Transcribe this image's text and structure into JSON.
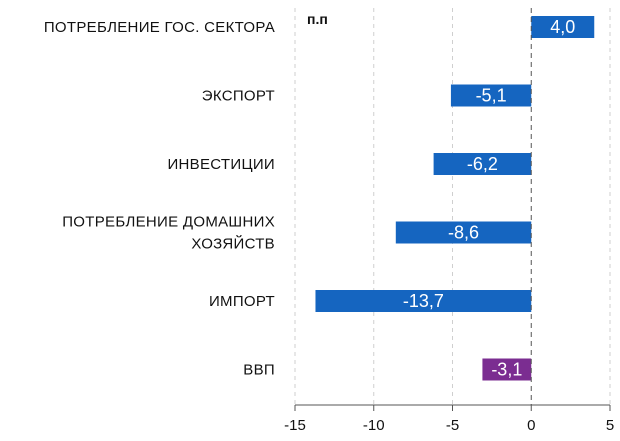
{
  "chart_data": {
    "type": "bar",
    "orientation": "horizontal",
    "unit_label": "п.п",
    "categories": [
      [
        "ПОТРЕБЛЕНИЕ ГОС. СЕКТОРА"
      ],
      [
        "ЭКСПОРТ"
      ],
      [
        "ИНВЕСТИЦИИ"
      ],
      [
        "ПОТРЕБЛЕНИЕ ДОМАШНИХ",
        "ХОЗЯЙСТВ"
      ],
      [
        "ИМПОРТ"
      ],
      [
        "ВВП"
      ]
    ],
    "values": [
      4.0,
      -5.1,
      -6.2,
      -8.6,
      -13.7,
      -3.1
    ],
    "value_labels": [
      "4,0",
      "-5,1",
      "-6,2",
      "-8,6",
      "-13,7",
      "-3,1"
    ],
    "colors": [
      "#1565c0",
      "#1565c0",
      "#1565c0",
      "#1565c0",
      "#1565c0",
      "#7b2d91"
    ],
    "xlim": [
      -15,
      5
    ],
    "xticks": [
      -15,
      -10,
      -5,
      0,
      5
    ],
    "xtick_labels": [
      "-15",
      "-10",
      "-5",
      "0",
      "5"
    ],
    "grid": "vertical dashed",
    "legend": "none"
  }
}
